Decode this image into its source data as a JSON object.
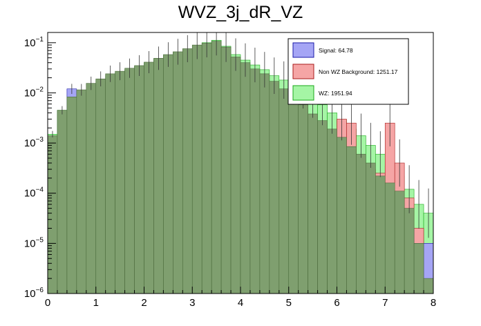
{
  "chart_data": {
    "type": "histogram",
    "title": "WVZ_3j_dR_VZ",
    "xlabel": "",
    "ylabel": "",
    "x_range": [
      0,
      8
    ],
    "y_range": [
      1e-06,
      0.16
    ],
    "y_scale": "log",
    "bin_width": 0.2,
    "x_ticks": [
      "0",
      "1",
      "2",
      "3",
      "4",
      "5",
      "6",
      "7",
      "8"
    ],
    "y_ticks": [
      {
        "base": "10",
        "exp": "−6"
      },
      {
        "base": "10",
        "exp": "−5"
      },
      {
        "base": "10",
        "exp": "−4"
      },
      {
        "base": "10",
        "exp": "−3"
      },
      {
        "base": "10",
        "exp": "−2"
      },
      {
        "base": "10",
        "exp": "−1"
      }
    ],
    "legend": [
      {
        "label": "Signal: 64.78",
        "color": "#a5a5f5",
        "edge": "#1a1aa8"
      },
      {
        "label": "Non WZ Background: 1251.17",
        "color": "#f5a5a5",
        "edge": "#a81a1a"
      },
      {
        "label": "WZ: 1951.94",
        "color": "#a5f5a5",
        "edge": "#1aa81a"
      }
    ],
    "series": [
      {
        "name": "WZ",
        "color": "#a5f5a5",
        "values": [
          0.0015,
          0.0045,
          0.008,
          0.0105,
          0.014,
          0.018,
          0.022,
          0.025,
          0.029,
          0.034,
          0.04,
          0.047,
          0.055,
          0.063,
          0.073,
          0.088,
          0.1,
          0.112,
          0.085,
          0.058,
          0.045,
          0.036,
          0.029,
          0.022,
          0.018,
          0.014,
          0.012,
          0.008,
          0.0058,
          0.004,
          0.0029,
          0.0019,
          0.0014,
          0.0009,
          0.0006,
          0.00035,
          0.00022,
          0.00012,
          6e-05,
          4e-05
        ]
      },
      {
        "name": "Non WZ Background",
        "color": "#f5a5a5",
        "values": [
          5e-05,
          0.0002,
          0.0005,
          0.0007,
          0.0009,
          0.0011,
          0.0012,
          0.0013,
          0.0014,
          0.0015,
          0.0016,
          0.0017,
          0.0018,
          0.0019,
          0.002,
          0.002,
          0.002,
          0.0019,
          0.0018,
          0.0017,
          0.0016,
          0.015,
          0.0018,
          0.0016,
          0.0014,
          0.0012,
          0.001,
          0.0009,
          0.0008,
          0.0007,
          0.003,
          0.0025,
          0.0004,
          0.0003,
          0.00025,
          0.0025,
          0.0004,
          8e-05,
          2e-05,
          1e-05
        ]
      },
      {
        "name": "Signal",
        "color": "#a5a5f5",
        "values": [
          0.0004,
          0.001,
          0.012,
          0.007,
          0.009,
          0.011,
          0.012,
          0.013,
          0.012,
          0.011,
          0.01,
          0.009,
          0.008,
          0.007,
          0.006,
          0.005,
          0.004,
          0.003,
          0.003,
          0.002,
          0.0015,
          0.001,
          0.0008,
          0.0006,
          0.0005,
          0.0004,
          0.0003,
          0.00025,
          0.0002,
          0.00015,
          0.00012,
          0.0001,
          8e-05,
          6e-05,
          5e-05,
          4e-05,
          3e-05,
          2e-05,
          1e-05,
          1e-05
        ]
      },
      {
        "name": "Overlap",
        "color": "#7f9f6f",
        "values": [
          0.0014,
          0.0045,
          0.0083,
          0.0115,
          0.0155,
          0.019,
          0.024,
          0.027,
          0.031,
          0.035,
          0.041,
          0.049,
          0.058,
          0.066,
          0.076,
          0.09,
          0.098,
          0.107,
          0.082,
          0.052,
          0.04,
          0.03,
          0.024,
          0.017,
          0.012,
          0.0083,
          0.0058,
          0.0038,
          0.0028,
          0.0019,
          0.0013,
          0.00085,
          0.0006,
          0.0004,
          0.00022,
          0.00016,
          0.00011,
          5e-05,
          1e-05,
          2e-06
        ]
      }
    ]
  }
}
